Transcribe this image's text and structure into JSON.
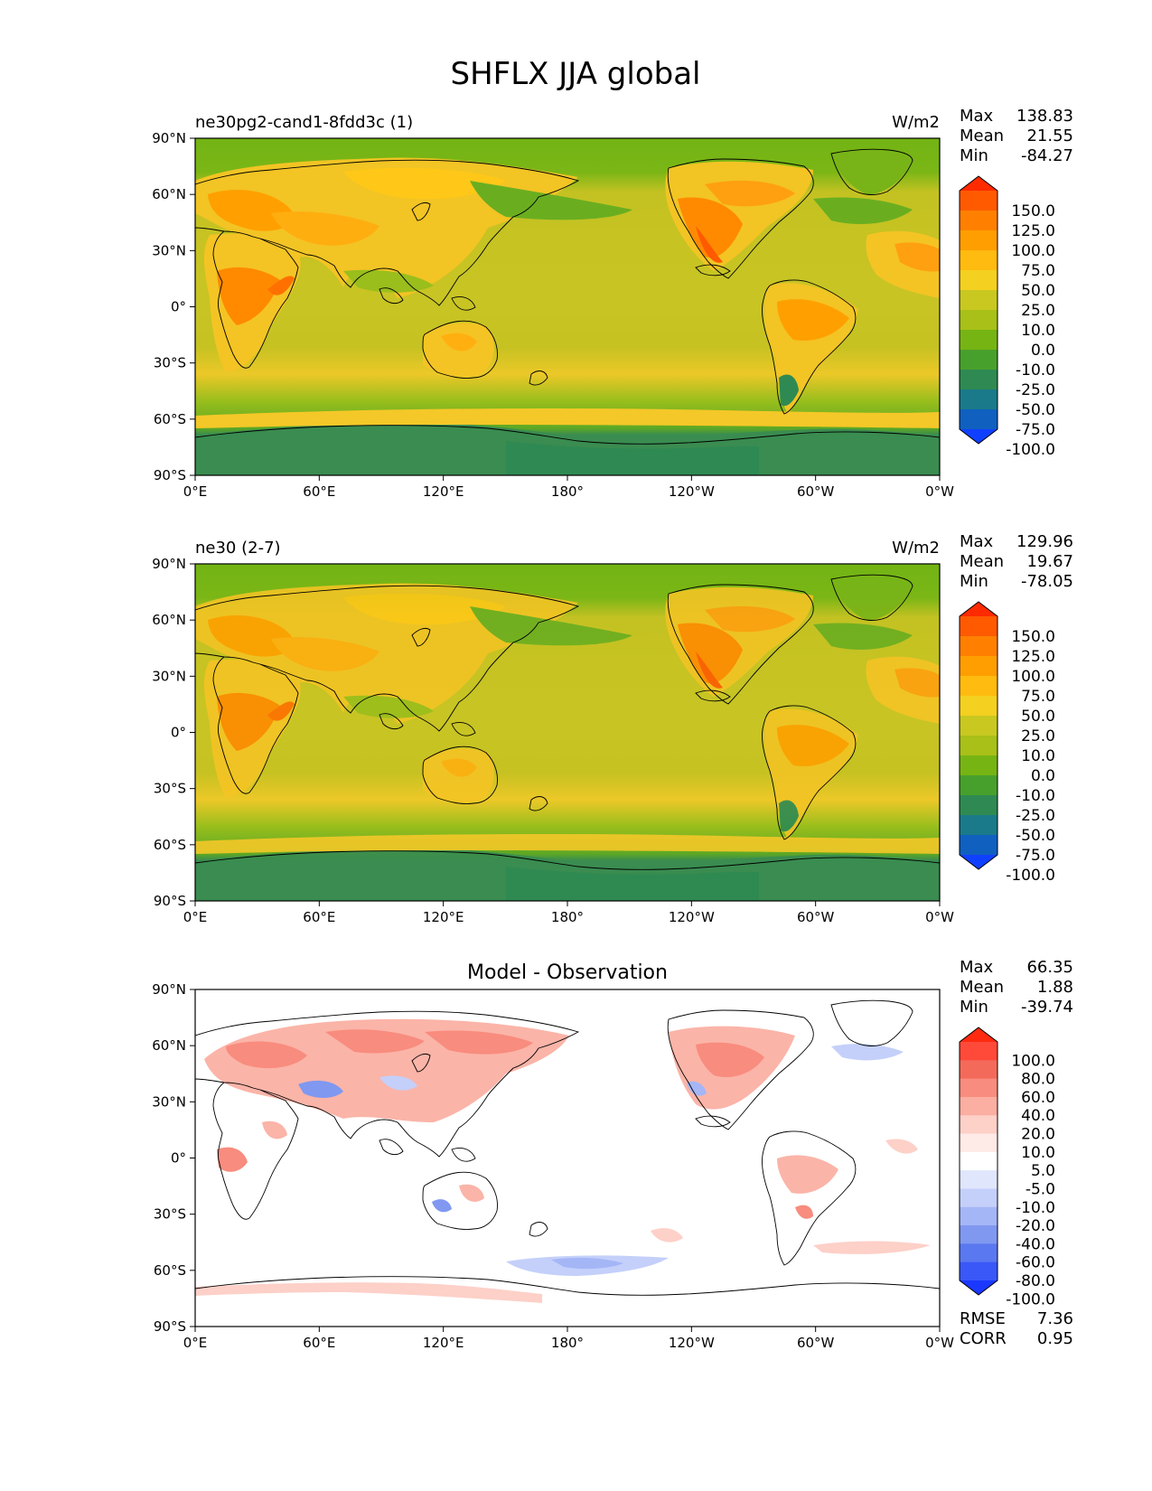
{
  "figure": {
    "title": "SHFLX JJA global"
  },
  "chart_data": [
    {
      "type": "heatmap",
      "id": "test",
      "title_left": "ne30pg2-cand1-8fdd3c (1)",
      "units": "W/m2",
      "stats": [
        {
          "label": "Max",
          "value": "138.83"
        },
        {
          "label": "Mean",
          "value": "21.55"
        },
        {
          "label": "Min",
          "value": "-84.27"
        }
      ],
      "colorbar_labels": [
        "150.0",
        "125.0",
        "100.0",
        "75.0",
        "50.0",
        "25.0",
        "10.0",
        "0.0",
        "-10.0",
        "-25.0",
        "-50.0",
        "-75.0",
        "-100.0"
      ],
      "colorbar_colors": [
        "#ff2a00",
        "#ff5a00",
        "#ff8000",
        "#ff9e00",
        "#ffbb10",
        "#f4d020",
        "#c8c820",
        "#a8c018",
        "#76b414",
        "#48a02c",
        "#2e8a52",
        "#1a7a8a",
        "#1060c0",
        "#1040ff"
      ],
      "x_ticks": [
        "0°E",
        "60°E",
        "120°E",
        "180°",
        "120°W",
        "60°W",
        "0°W"
      ],
      "y_ticks": [
        "90°N",
        "60°N",
        "30°N",
        "0°",
        "30°S",
        "60°S",
        "90°S"
      ]
    },
    {
      "type": "heatmap",
      "id": "ref",
      "title_left": "ne30 (2-7)",
      "units": "W/m2",
      "stats": [
        {
          "label": "Max",
          "value": "129.96"
        },
        {
          "label": "Mean",
          "value": "19.67"
        },
        {
          "label": "Min",
          "value": "-78.05"
        }
      ],
      "colorbar_labels": [
        "150.0",
        "125.0",
        "100.0",
        "75.0",
        "50.0",
        "25.0",
        "10.0",
        "0.0",
        "-10.0",
        "-25.0",
        "-50.0",
        "-75.0",
        "-100.0"
      ],
      "colorbar_colors": [
        "#ff2a00",
        "#ff5a00",
        "#ff8000",
        "#ff9e00",
        "#ffbb10",
        "#f4d020",
        "#c8c820",
        "#a8c018",
        "#76b414",
        "#48a02c",
        "#2e8a52",
        "#1a7a8a",
        "#1060c0",
        "#1040ff"
      ],
      "x_ticks": [
        "0°E",
        "60°E",
        "120°E",
        "180°",
        "120°W",
        "60°W",
        "0°W"
      ],
      "y_ticks": [
        "90°N",
        "60°N",
        "30°N",
        "0°",
        "30°S",
        "60°S",
        "90°S"
      ]
    },
    {
      "type": "heatmap",
      "id": "diff",
      "title_center": "Model - Observation",
      "stats": [
        {
          "label": "Max",
          "value": "66.35"
        },
        {
          "label": "Mean",
          "value": "1.88"
        },
        {
          "label": "Min",
          "value": "-39.74"
        }
      ],
      "metrics": [
        {
          "label": "RMSE",
          "value": "7.36"
        },
        {
          "label": "CORR",
          "value": "0.95"
        }
      ],
      "colorbar_labels": [
        "100.0",
        "80.0",
        "60.0",
        "40.0",
        "20.0",
        "10.0",
        "5.0",
        "-5.0",
        "-10.0",
        "-20.0",
        "-40.0",
        "-60.0",
        "-80.0",
        "-100.0"
      ],
      "colorbar_colors": [
        "#ff2a10",
        "#ff4a3a",
        "#f46a5a",
        "#f88c7e",
        "#fbaea2",
        "#fdd0c8",
        "#feeae6",
        "#ffffff",
        "#e0e6fc",
        "#c4d0fa",
        "#a4b6f6",
        "#8098f0",
        "#5a78f0",
        "#3a58f8",
        "#1a38ff"
      ],
      "x_ticks": [
        "0°E",
        "60°E",
        "120°E",
        "180°",
        "120°W",
        "60°W",
        "0°W"
      ],
      "y_ticks": [
        "90°N",
        "60°N",
        "30°N",
        "0°",
        "30°S",
        "60°S",
        "90°S"
      ]
    }
  ]
}
